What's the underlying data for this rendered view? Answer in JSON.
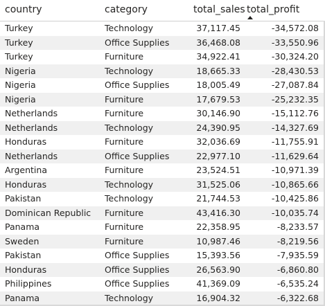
{
  "table": {
    "columns": {
      "country": "country",
      "category": "category",
      "total_sales": "total_sales",
      "total_profit": "total_profit"
    },
    "sort_icon": "sort-ascending-icon",
    "rows": [
      {
        "country": "Turkey",
        "category": "Technology",
        "total_sales": "37,117.45",
        "total_profit": "-34,572.08"
      },
      {
        "country": "Turkey",
        "category": "Office Supplies",
        "total_sales": "36,468.08",
        "total_profit": "-33,550.96"
      },
      {
        "country": "Turkey",
        "category": "Furniture",
        "total_sales": "34,922.41",
        "total_profit": "-30,324.20"
      },
      {
        "country": "Nigeria",
        "category": "Technology",
        "total_sales": "18,665.33",
        "total_profit": "-28,430.53"
      },
      {
        "country": "Nigeria",
        "category": "Office Supplies",
        "total_sales": "18,005.49",
        "total_profit": "-27,087.84"
      },
      {
        "country": "Nigeria",
        "category": "Furniture",
        "total_sales": "17,679.53",
        "total_profit": "-25,232.35"
      },
      {
        "country": "Netherlands",
        "category": "Furniture",
        "total_sales": "30,146.90",
        "total_profit": "-15,112.76"
      },
      {
        "country": "Netherlands",
        "category": "Technology",
        "total_sales": "24,390.95",
        "total_profit": "-14,327.69"
      },
      {
        "country": "Honduras",
        "category": "Furniture",
        "total_sales": "32,036.69",
        "total_profit": "-11,755.91"
      },
      {
        "country": "Netherlands",
        "category": "Office Supplies",
        "total_sales": "22,977.10",
        "total_profit": "-11,629.64"
      },
      {
        "country": "Argentina",
        "category": "Furniture",
        "total_sales": "23,524.51",
        "total_profit": "-10,971.39"
      },
      {
        "country": "Honduras",
        "category": "Technology",
        "total_sales": "31,525.06",
        "total_profit": "-10,865.66"
      },
      {
        "country": "Pakistan",
        "category": "Technology",
        "total_sales": "21,744.53",
        "total_profit": "-10,425.86"
      },
      {
        "country": "Dominican Republic",
        "category": "Furniture",
        "total_sales": "43,416.30",
        "total_profit": "-10,035.74"
      },
      {
        "country": "Panama",
        "category": "Furniture",
        "total_sales": "22,358.95",
        "total_profit": "-8,233.57"
      },
      {
        "country": "Sweden",
        "category": "Furniture",
        "total_sales": "10,987.46",
        "total_profit": "-8,219.56"
      },
      {
        "country": "Pakistan",
        "category": "Office Supplies",
        "total_sales": "15,393.56",
        "total_profit": "-7,935.59"
      },
      {
        "country": "Honduras",
        "category": "Office Supplies",
        "total_sales": "26,563.90",
        "total_profit": "-6,860.80"
      },
      {
        "country": "Philippines",
        "category": "Office Supplies",
        "total_sales": "41,369.09",
        "total_profit": "-6,535.24"
      },
      {
        "country": "Panama",
        "category": "Technology",
        "total_sales": "16,904.32",
        "total_profit": "-6,322.68"
      }
    ]
  }
}
